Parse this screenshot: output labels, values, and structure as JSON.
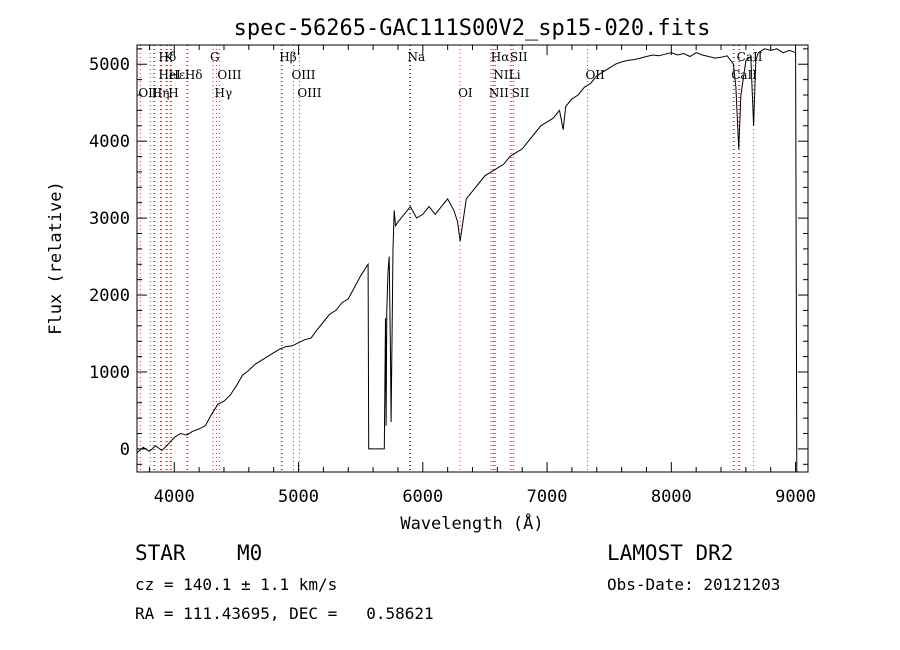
{
  "chart_data": {
    "type": "line",
    "title": "spec-56265-GAC111S00V2_sp15-020.fits",
    "xlabel": "Wavelength (Å)",
    "ylabel": "Flux (relative)",
    "xlim": [
      3700,
      9100
    ],
    "ylim": [
      -300,
      5250
    ],
    "xticks": [
      4000,
      5000,
      6000,
      7000,
      8000,
      9000
    ],
    "yticks": [
      0,
      1000,
      2000,
      3000,
      4000,
      5000
    ],
    "grid": false,
    "series": [
      {
        "x": [
          3700,
          3750,
          3800,
          3850,
          3900,
          3950,
          4000,
          4050,
          4100,
          4150,
          4200,
          4250,
          4300,
          4350,
          4400,
          4450,
          4500,
          4550,
          4600,
          4650,
          4700,
          4750,
          4800,
          4850,
          4900,
          4950,
          5000,
          5050,
          5100,
          5150,
          5200,
          5250,
          5300,
          5350,
          5400,
          5450,
          5500,
          5540,
          5560,
          5565,
          5600,
          5650,
          5690,
          5700,
          5705,
          5710,
          5720,
          5730,
          5740,
          5745,
          5760,
          5770,
          5780,
          5800,
          5850,
          5900,
          5950,
          6000,
          6050,
          6100,
          6150,
          6200,
          6250,
          6280,
          6300,
          6350,
          6400,
          6450,
          6500,
          6550,
          6600,
          6650,
          6700,
          6750,
          6800,
          6850,
          6900,
          6950,
          7000,
          7050,
          7100,
          7130,
          7150,
          7200,
          7250,
          7300,
          7350,
          7400,
          7450,
          7500,
          7550,
          7600,
          7650,
          7700,
          7750,
          7800,
          7850,
          7900,
          7950,
          8000,
          8050,
          8100,
          8150,
          8200,
          8250,
          8300,
          8350,
          8400,
          8450,
          8500,
          8520,
          8542,
          8560,
          8600,
          8640,
          8662,
          8680,
          8700,
          8750,
          8800,
          8850,
          8900,
          8950,
          9000,
          9010
        ],
        "y": [
          -50,
          20,
          -30,
          40,
          -20,
          60,
          150,
          200,
          180,
          230,
          260,
          300,
          450,
          580,
          620,
          700,
          820,
          960,
          1020,
          1100,
          1150,
          1200,
          1250,
          1300,
          1330,
          1340,
          1380,
          1420,
          1440,
          1550,
          1650,
          1750,
          1800,
          1900,
          1950,
          2100,
          2250,
          2350,
          2400,
          0,
          0,
          0,
          0,
          1700,
          300,
          1800,
          2300,
          2500,
          1200,
          350,
          2600,
          3100,
          2900,
          2950,
          3050,
          3150,
          3000,
          3050,
          3150,
          3050,
          3150,
          3250,
          3100,
          2950,
          2700,
          3250,
          3350,
          3450,
          3550,
          3600,
          3650,
          3700,
          3800,
          3850,
          3900,
          4000,
          4100,
          4200,
          4250,
          4300,
          4400,
          4150,
          4450,
          4550,
          4600,
          4700,
          4750,
          4850,
          4900,
          4950,
          5000,
          5030,
          5050,
          5060,
          5080,
          5100,
          5120,
          5110,
          5130,
          5150,
          5120,
          5140,
          5100,
          5150,
          5120,
          5100,
          5080,
          5090,
          5110,
          5000,
          4700,
          3900,
          4600,
          5050,
          5100,
          4200,
          5050,
          5150,
          5200,
          5180,
          5200,
          5150,
          5180,
          5150,
          -300
        ]
      }
    ],
    "line_labels": [
      {
        "text": "Hδ",
        "x": 3889,
        "row": 0
      },
      {
        "text": "K",
        "x": 3934,
        "row": 0
      },
      {
        "text": "HeI",
        "x": 3889,
        "row": 1
      },
      {
        "text": "Hε",
        "x": 3970,
        "row": 1
      },
      {
        "text": "OIII",
        "x": 3727,
        "row": 2
      },
      {
        "text": "Hη",
        "x": 3835,
        "row": 2
      },
      {
        "text": "H",
        "x": 3968,
        "row": 2
      },
      {
        "text": "Hδ",
        "x": 4101,
        "row": 1
      },
      {
        "text": "G",
        "x": 4304,
        "row": 0
      },
      {
        "text": "OIII",
        "x": 4363,
        "row": 1
      },
      {
        "text": "Hγ",
        "x": 4340,
        "row": 2
      },
      {
        "text": "Hβ",
        "x": 4861,
        "row": 0
      },
      {
        "text": "OIII",
        "x": 4959,
        "row": 1
      },
      {
        "text": "OIII",
        "x": 5007,
        "row": 2
      },
      {
        "text": "Na",
        "x": 5893,
        "row": 0
      },
      {
        "text": "OI",
        "x": 6300,
        "row": 2
      },
      {
        "text": "Hα",
        "x": 6563,
        "row": 0
      },
      {
        "text": "SII",
        "x": 6717,
        "row": 0
      },
      {
        "text": "NII",
        "x": 6584,
        "row": 1
      },
      {
        "text": "Li",
        "x": 6708,
        "row": 1
      },
      {
        "text": "NII",
        "x": 6548,
        "row": 2
      },
      {
        "text": "SII",
        "x": 6731,
        "row": 2
      },
      {
        "text": "OII",
        "x": 7325,
        "row": 1
      },
      {
        "text": "CaII",
        "x": 8542,
        "row": 0
      },
      {
        "text": "CaII",
        "x": 8498,
        "row": 1
      }
    ],
    "marker_lines_red": [
      3727,
      3835,
      3889,
      3934,
      3968,
      4101,
      4340,
      4363,
      4861,
      4959,
      5007,
      5893,
      6300,
      6548,
      6563,
      6584,
      6708,
      6717,
      6731,
      7325,
      8498,
      8542,
      8662
    ],
    "marker_lines_black": [
      3798,
      3835,
      3889,
      3934,
      3968,
      4101,
      4304,
      4861,
      5893,
      6563,
      8498,
      8542
    ]
  },
  "info": {
    "class_label": "STAR",
    "subclass": "M0",
    "survey": "LAMOST DR2",
    "cz": "cz = 140.1 ± 1.1 km/s",
    "obs_date": "Obs-Date: 20121203",
    "coords": "RA = 111.43695, DEC =   0.58621"
  }
}
